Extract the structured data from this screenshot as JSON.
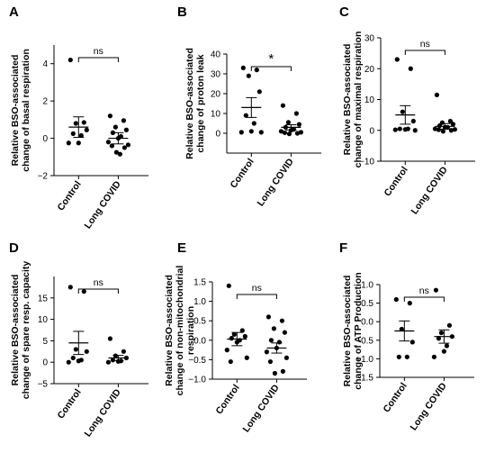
{
  "chart_data": [
    {
      "panel_label": "A",
      "type": "scatter",
      "ylabel_lines": [
        "Relative BSO-associated",
        "change of basal respiration"
      ],
      "ylim": [
        -2,
        5
      ],
      "yticks": [
        -2,
        0,
        2,
        4
      ],
      "categories": [
        "Control",
        "Long COVID"
      ],
      "significance": "ns",
      "series": [
        {
          "name": "Control",
          "values": [
            4.2,
            0.85,
            0.8,
            0.45,
            0.25,
            0.15,
            -0.25,
            -0.25
          ],
          "mean": 0.6,
          "sem": 0.55
        },
        {
          "name": "Long COVID",
          "values": [
            1.2,
            0.95,
            0.6,
            0.45,
            0.3,
            0.1,
            0.0,
            -0.2,
            -0.35,
            -0.4,
            -0.5,
            -0.75,
            -0.85
          ],
          "mean": 0.0,
          "sem": 0.3
        }
      ]
    },
    {
      "panel_label": "B",
      "type": "scatter",
      "ylabel_lines": [
        "Relative BSO-associated",
        "change of proton leak"
      ],
      "ylim": [
        -10,
        40
      ],
      "yticks": [
        0,
        10,
        20,
        30,
        40
      ],
      "categories": [
        "Control",
        "Long COVID"
      ],
      "significance": "*",
      "series": [
        {
          "name": "Control",
          "values": [
            33,
            32,
            29,
            21,
            9,
            5,
            1,
            0.5,
            0.5
          ],
          "mean": 13,
          "sem": 5
        },
        {
          "name": "Long COVID",
          "values": [
            14,
            10,
            5.5,
            4.5,
            3,
            2,
            1.5,
            1,
            0.5,
            0.3,
            0,
            -0.3
          ],
          "mean": 3,
          "sem": 1.3
        }
      ]
    },
    {
      "panel_label": "C",
      "type": "scatter",
      "ylabel_lines": [
        "Relative BSO-associated",
        "change of maximal respiration"
      ],
      "ylim": [
        -10,
        30
      ],
      "yticks": [
        -10,
        0,
        10,
        20,
        30
      ],
      "categories": [
        "Control",
        "Long COVID"
      ],
      "significance": "ns",
      "series": [
        {
          "name": "Control",
          "values": [
            23,
            20,
            6,
            3,
            0.5,
            0.5,
            0.3,
            0.2,
            0
          ],
          "mean": 5,
          "sem": 3
        },
        {
          "name": "Long COVID",
          "values": [
            11.5,
            3,
            2.5,
            2,
            1.5,
            1,
            1,
            0.5,
            0.3,
            0.2,
            0,
            -0.3
          ],
          "mean": 1.3,
          "sem": 0.9
        }
      ]
    },
    {
      "panel_label": "D",
      "type": "scatter",
      "ylabel_lines": [
        "Relative BSO-associated",
        "change of spare resp. capacity"
      ],
      "ylim": [
        -5,
        20
      ],
      "yticks": [
        -5,
        0,
        5,
        10,
        15
      ],
      "categories": [
        "Control",
        "Long COVID"
      ],
      "significance": "ns",
      "series": [
        {
          "name": "Control",
          "values": [
            17.5,
            16.5,
            3,
            2.5,
            1,
            0.5,
            0.3,
            0
          ],
          "mean": 4.5,
          "sem": 2.7
        },
        {
          "name": "Long COVID",
          "values": [
            5.5,
            2.5,
            1.5,
            1,
            0.5,
            0.3,
            0.2,
            0
          ],
          "mean": 1,
          "sem": 0.6
        }
      ]
    },
    {
      "panel_label": "E",
      "type": "scatter",
      "ylabel_lines": [
        "Relative BSO-associated",
        "change of non-mitochondrial",
        "respiration"
      ],
      "ylim": [
        -1.0,
        1.5
      ],
      "yticks": [
        -1.0,
        -0.5,
        0.0,
        0.5,
        1.0,
        1.5
      ],
      "categories": [
        "Control",
        "Long COVID"
      ],
      "significance": "ns",
      "series": [
        {
          "name": "Control",
          "values": [
            1.4,
            0.25,
            0.15,
            0.1,
            0.05,
            0.0,
            -0.05,
            -0.25,
            -0.45,
            -0.55
          ],
          "mean": 0.03,
          "sem": 0.17
        },
        {
          "name": "Long COVID",
          "values": [
            0.6,
            0.5,
            0.3,
            0.2,
            0.0,
            -0.05,
            -0.2,
            -0.3,
            -0.45,
            -0.55,
            -0.8,
            -0.85
          ],
          "mean": -0.2,
          "sem": 0.13
        }
      ]
    },
    {
      "panel_label": "F",
      "type": "scatter",
      "ylabel_lines": [
        "Relative BSO-associated",
        "change of ATP Production"
      ],
      "ylim": [
        -1.5,
        1.0
      ],
      "yticks": [
        -1.5,
        -1.0,
        -0.5,
        0.0,
        0.5,
        1.0
      ],
      "categories": [
        "Control",
        "Long COVID"
      ],
      "significance": "ns",
      "series": [
        {
          "name": "Control",
          "values": [
            0.6,
            0.5,
            -0.2,
            -0.55,
            -0.95,
            -0.95
          ],
          "mean": -0.25,
          "sem": 0.27
        },
        {
          "name": "Long COVID",
          "values": [
            0.85,
            -0.1,
            -0.3,
            -0.4,
            -0.45,
            -0.65,
            -0.8,
            -0.95
          ],
          "mean": -0.4,
          "sem": 0.18
        }
      ]
    }
  ]
}
